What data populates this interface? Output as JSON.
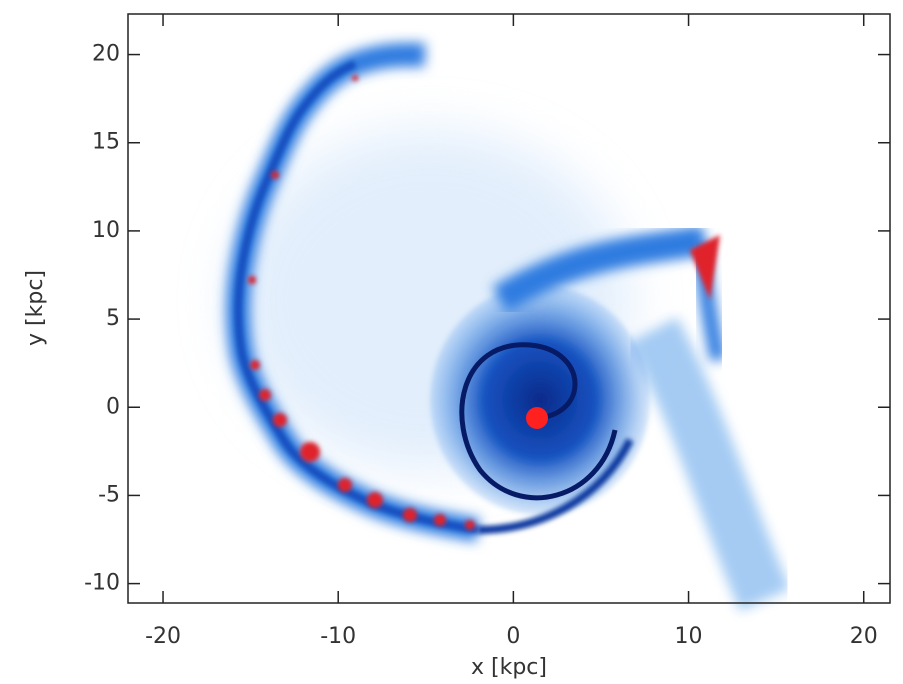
{
  "chart_data": {
    "type": "density",
    "xlabel": "x [kpc]",
    "ylabel": "y [kpc]",
    "xlim": [
      -22,
      21.5
    ],
    "ylim": [
      -11.1,
      22.3
    ],
    "xticks": [
      -20,
      -10,
      0,
      10,
      20
    ],
    "yticks": [
      -10,
      -5,
      0,
      5,
      10,
      15,
      20
    ]
  }
}
